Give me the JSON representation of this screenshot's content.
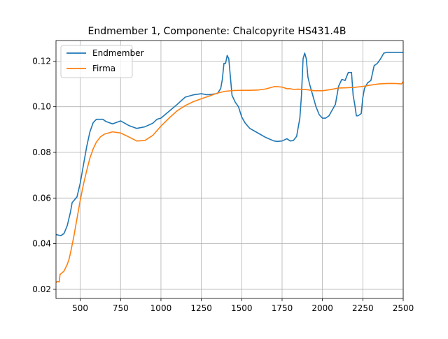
{
  "chart_data": {
    "type": "line",
    "title": "Endmember 1, Componente: Chalcopyrite HS431.4B",
    "xlabel": "",
    "ylabel": "",
    "xlim": [
      350,
      2500
    ],
    "ylim": [
      0.016,
      0.129
    ],
    "xticks": [
      500,
      750,
      1000,
      1250,
      1500,
      1750,
      2000,
      2250,
      2500
    ],
    "yticks": [
      0.02,
      0.04,
      0.06,
      0.08,
      0.1,
      0.12
    ],
    "xtick_labels": [
      "500",
      "750",
      "1000",
      "1250",
      "1500",
      "1750",
      "2000",
      "2250",
      "2500"
    ],
    "ytick_labels": [
      "0.02",
      "0.04",
      "0.06",
      "0.08",
      "0.10",
      "0.12"
    ],
    "grid": true,
    "legend_position": "top-left",
    "series": [
      {
        "name": "Endmember",
        "color": "#1f77b4",
        "x": [
          350,
          380,
          400,
          420,
          440,
          450,
          480,
          500,
          520,
          540,
          560,
          580,
          600,
          640,
          660,
          700,
          750,
          800,
          850,
          900,
          950,
          975,
          1000,
          1050,
          1100,
          1150,
          1200,
          1250,
          1280,
          1300,
          1350,
          1370,
          1380,
          1390,
          1400,
          1410,
          1420,
          1430,
          1440,
          1460,
          1480,
          1500,
          1520,
          1550,
          1600,
          1650,
          1700,
          1720,
          1750,
          1780,
          1800,
          1820,
          1840,
          1860,
          1870,
          1880,
          1890,
          1900,
          1910,
          1920,
          1940,
          1960,
          1980,
          2000,
          2020,
          2040,
          2060,
          2080,
          2100,
          2120,
          2140,
          2160,
          2180,
          2190,
          2200,
          2210,
          2220,
          2240,
          2250,
          2260,
          2280,
          2300,
          2320,
          2340,
          2360,
          2380,
          2400,
          2420,
          2440,
          2460,
          2480,
          2500
        ],
        "y": [
          0.044,
          0.0435,
          0.0445,
          0.048,
          0.054,
          0.058,
          0.0605,
          0.0665,
          0.0745,
          0.0825,
          0.089,
          0.093,
          0.0945,
          0.0945,
          0.0935,
          0.0925,
          0.0938,
          0.0918,
          0.0905,
          0.0912,
          0.0928,
          0.0945,
          0.095,
          0.098,
          0.101,
          0.1042,
          0.1052,
          0.1057,
          0.1053,
          0.1053,
          0.1058,
          0.108,
          0.112,
          0.119,
          0.119,
          0.1225,
          0.121,
          0.113,
          0.105,
          0.102,
          0.1,
          0.0955,
          0.093,
          0.0905,
          0.0885,
          0.0865,
          0.085,
          0.0848,
          0.085,
          0.086,
          0.085,
          0.0852,
          0.087,
          0.095,
          0.105,
          0.121,
          0.1235,
          0.121,
          0.113,
          0.11,
          0.105,
          0.1,
          0.0965,
          0.095,
          0.095,
          0.096,
          0.0985,
          0.101,
          0.109,
          0.112,
          0.1115,
          0.115,
          0.115,
          0.105,
          0.101,
          0.096,
          0.096,
          0.097,
          0.104,
          0.108,
          0.1105,
          0.1115,
          0.118,
          0.119,
          0.121,
          0.1235,
          0.1238,
          0.1238,
          0.1238,
          0.1238,
          0.1238,
          0.1238
        ]
      },
      {
        "name": "Firma",
        "color": "#ff7f0e",
        "x": [
          350,
          360,
          370,
          375,
          380,
          400,
          420,
          430,
          440,
          460,
          480,
          500,
          520,
          540,
          560,
          580,
          600,
          625,
          650,
          700,
          750,
          800,
          850,
          900,
          950,
          1000,
          1050,
          1100,
          1150,
          1200,
          1250,
          1300,
          1350,
          1400,
          1450,
          1500,
          1550,
          1600,
          1650,
          1700,
          1720,
          1750,
          1780,
          1800,
          1820,
          1850,
          1900,
          1950,
          2000,
          2050,
          2100,
          2150,
          2200,
          2250,
          2300,
          2350,
          2400,
          2450,
          2490,
          2500
        ],
        "y": [
          0.023,
          0.0235,
          0.0232,
          0.0265,
          0.0268,
          0.028,
          0.031,
          0.033,
          0.036,
          0.043,
          0.051,
          0.059,
          0.066,
          0.072,
          0.0775,
          0.0815,
          0.0845,
          0.0868,
          0.088,
          0.089,
          0.0885,
          0.0868,
          0.085,
          0.0852,
          0.0875,
          0.0915,
          0.095,
          0.0982,
          0.1005,
          0.1022,
          0.1035,
          0.1047,
          0.106,
          0.1068,
          0.1071,
          0.1072,
          0.1072,
          0.1073,
          0.1078,
          0.1088,
          0.1088,
          0.1086,
          0.1079,
          0.1079,
          0.1076,
          0.1077,
          0.1075,
          0.107,
          0.107,
          0.1075,
          0.1082,
          0.1083,
          0.1085,
          0.1089,
          0.1095,
          0.11,
          0.1102,
          0.1102,
          0.11,
          0.111
        ]
      }
    ]
  }
}
